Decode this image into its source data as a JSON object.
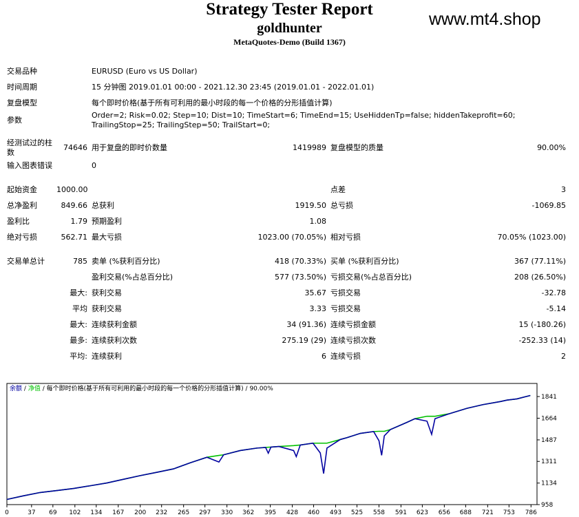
{
  "header": {
    "title": "Strategy Tester Report",
    "name": "goldhunter",
    "server": "MetaQuotes-Demo (Build 1367)",
    "watermark": "www.mt4.shop"
  },
  "table": {
    "rows": [
      [
        "交易品种",
        "EURUSD (Euro vs US Dollar)"
      ],
      [
        "时间周期",
        "15 分钟图 2019.01.01 00:00 - 2021.12.30 23:45 (2019.01.01 - 2022.01.01)"
      ],
      [
        "复盘模型",
        "每个即时价格(基于所有可利用的最小时段的每一个价格的分形插值计算)"
      ],
      [
        "参数",
        "Order=2; Risk=0.02; Step=10; Dist=10; TimeStart=6; TimeEnd=15; UseHiddenTp=false; hiddenTakeprofit=60; TrailingStop=25; TrailingStep=50; TrailStart=0;"
      ],
      [
        "经测试过的柱数",
        "74646",
        "用于复盘的即时价数量",
        "1419989",
        "复盘模型的质量",
        "90.00%"
      ],
      [
        "输入图表错误",
        "0"
      ],
      [
        "起始资金",
        "1000.00",
        "点差",
        "3"
      ],
      [
        "总净盈利",
        "849.66",
        "总获利",
        "1919.50",
        "总亏损",
        "-1069.85"
      ],
      [
        "盈利比",
        "1.79",
        "预期盈利",
        "1.08"
      ],
      [
        "绝对亏损",
        "562.71",
        "最大亏损",
        "1023.00 (70.05%)",
        "相对亏损",
        "70.05% (1023.00)"
      ],
      [
        "交易单总计",
        "785",
        "卖单 (%获利百分比)",
        "418 (70.33%)",
        "买单 (%获利百分比)",
        "367 (77.11%)"
      ],
      [
        "盈利交易(%占总百分比)",
        "577 (73.50%)",
        "亏损交易(%占总百分比)",
        "208 (26.50%)"
      ],
      [
        "最大:",
        "获利交易",
        "35.67",
        "亏损交易",
        "-32.78"
      ],
      [
        "平均",
        "获利交易",
        "3.33",
        "亏损交易",
        "-5.14"
      ],
      [
        "最大:",
        "连续获利金额",
        "34 (91.36)",
        "连续亏损金额",
        "15 (-180.26)"
      ],
      [
        "最多:",
        "连续获利次数",
        "275.19 (29)",
        "连续亏损次数",
        "-252.33 (14)"
      ],
      [
        "平均:",
        "连续获利",
        "6",
        "连续亏损",
        "2"
      ]
    ]
  },
  "chart_data": {
    "type": "line",
    "legend_separator": "/",
    "model": "每个即时价格(基于所有可利用的最小时段的每一个价格的分形插值计算)",
    "quality": "90.00%",
    "x": [
      0,
      25,
      50,
      75,
      100,
      125,
      150,
      175,
      200,
      225,
      250,
      275,
      300,
      318,
      325,
      350,
      375,
      388,
      392,
      396,
      408,
      430,
      434,
      440,
      459,
      470,
      475,
      480,
      500,
      510,
      530,
      550,
      558,
      562,
      566,
      575,
      600,
      612,
      630,
      637,
      642,
      663,
      690,
      714,
      740,
      750,
      765,
      785
    ],
    "series": [
      {
        "name": "余额",
        "color": "#0000a0",
        "values": [
          1000,
          1030,
          1057,
          1073,
          1090,
          1112,
          1135,
          1165,
          1195,
          1222,
          1250,
          1300,
          1345,
          1306,
          1365,
          1400,
          1420,
          1425,
          1378,
          1428,
          1433,
          1400,
          1350,
          1445,
          1460,
          1380,
          1212,
          1420,
          1490,
          1505,
          1540,
          1555,
          1480,
          1361,
          1520,
          1571,
          1630,
          1660,
          1640,
          1532,
          1660,
          1700,
          1745,
          1775,
          1800,
          1812,
          1822,
          1849.66
        ]
      },
      {
        "name": "净值",
        "color": "#00c000",
        "values": [
          1000,
          1030,
          1057,
          1073,
          1090,
          1112,
          1135,
          1165,
          1195,
          1222,
          1250,
          1300,
          1345,
          1360,
          1365,
          1400,
          1420,
          1425,
          1427,
          1428,
          1433,
          1440,
          1442,
          1445,
          1460,
          1460,
          1460,
          1460,
          1490,
          1505,
          1540,
          1555,
          1557,
          1557,
          1557,
          1571,
          1630,
          1660,
          1680,
          1680,
          1680,
          1700,
          1745,
          1775,
          1800,
          1812,
          1822,
          1849.66
        ]
      }
    ],
    "xlim": [
      0,
      795
    ],
    "xticks": [
      0,
      37,
      69,
      102,
      134,
      167,
      200,
      232,
      265,
      297,
      330,
      362,
      395,
      428,
      460,
      493,
      525,
      558,
      591,
      623,
      656,
      688,
      721,
      753,
      786
    ],
    "ylim": [
      958,
      1948
    ],
    "yticks": [
      958,
      1134,
      1311,
      1487,
      1664,
      1841
    ]
  }
}
